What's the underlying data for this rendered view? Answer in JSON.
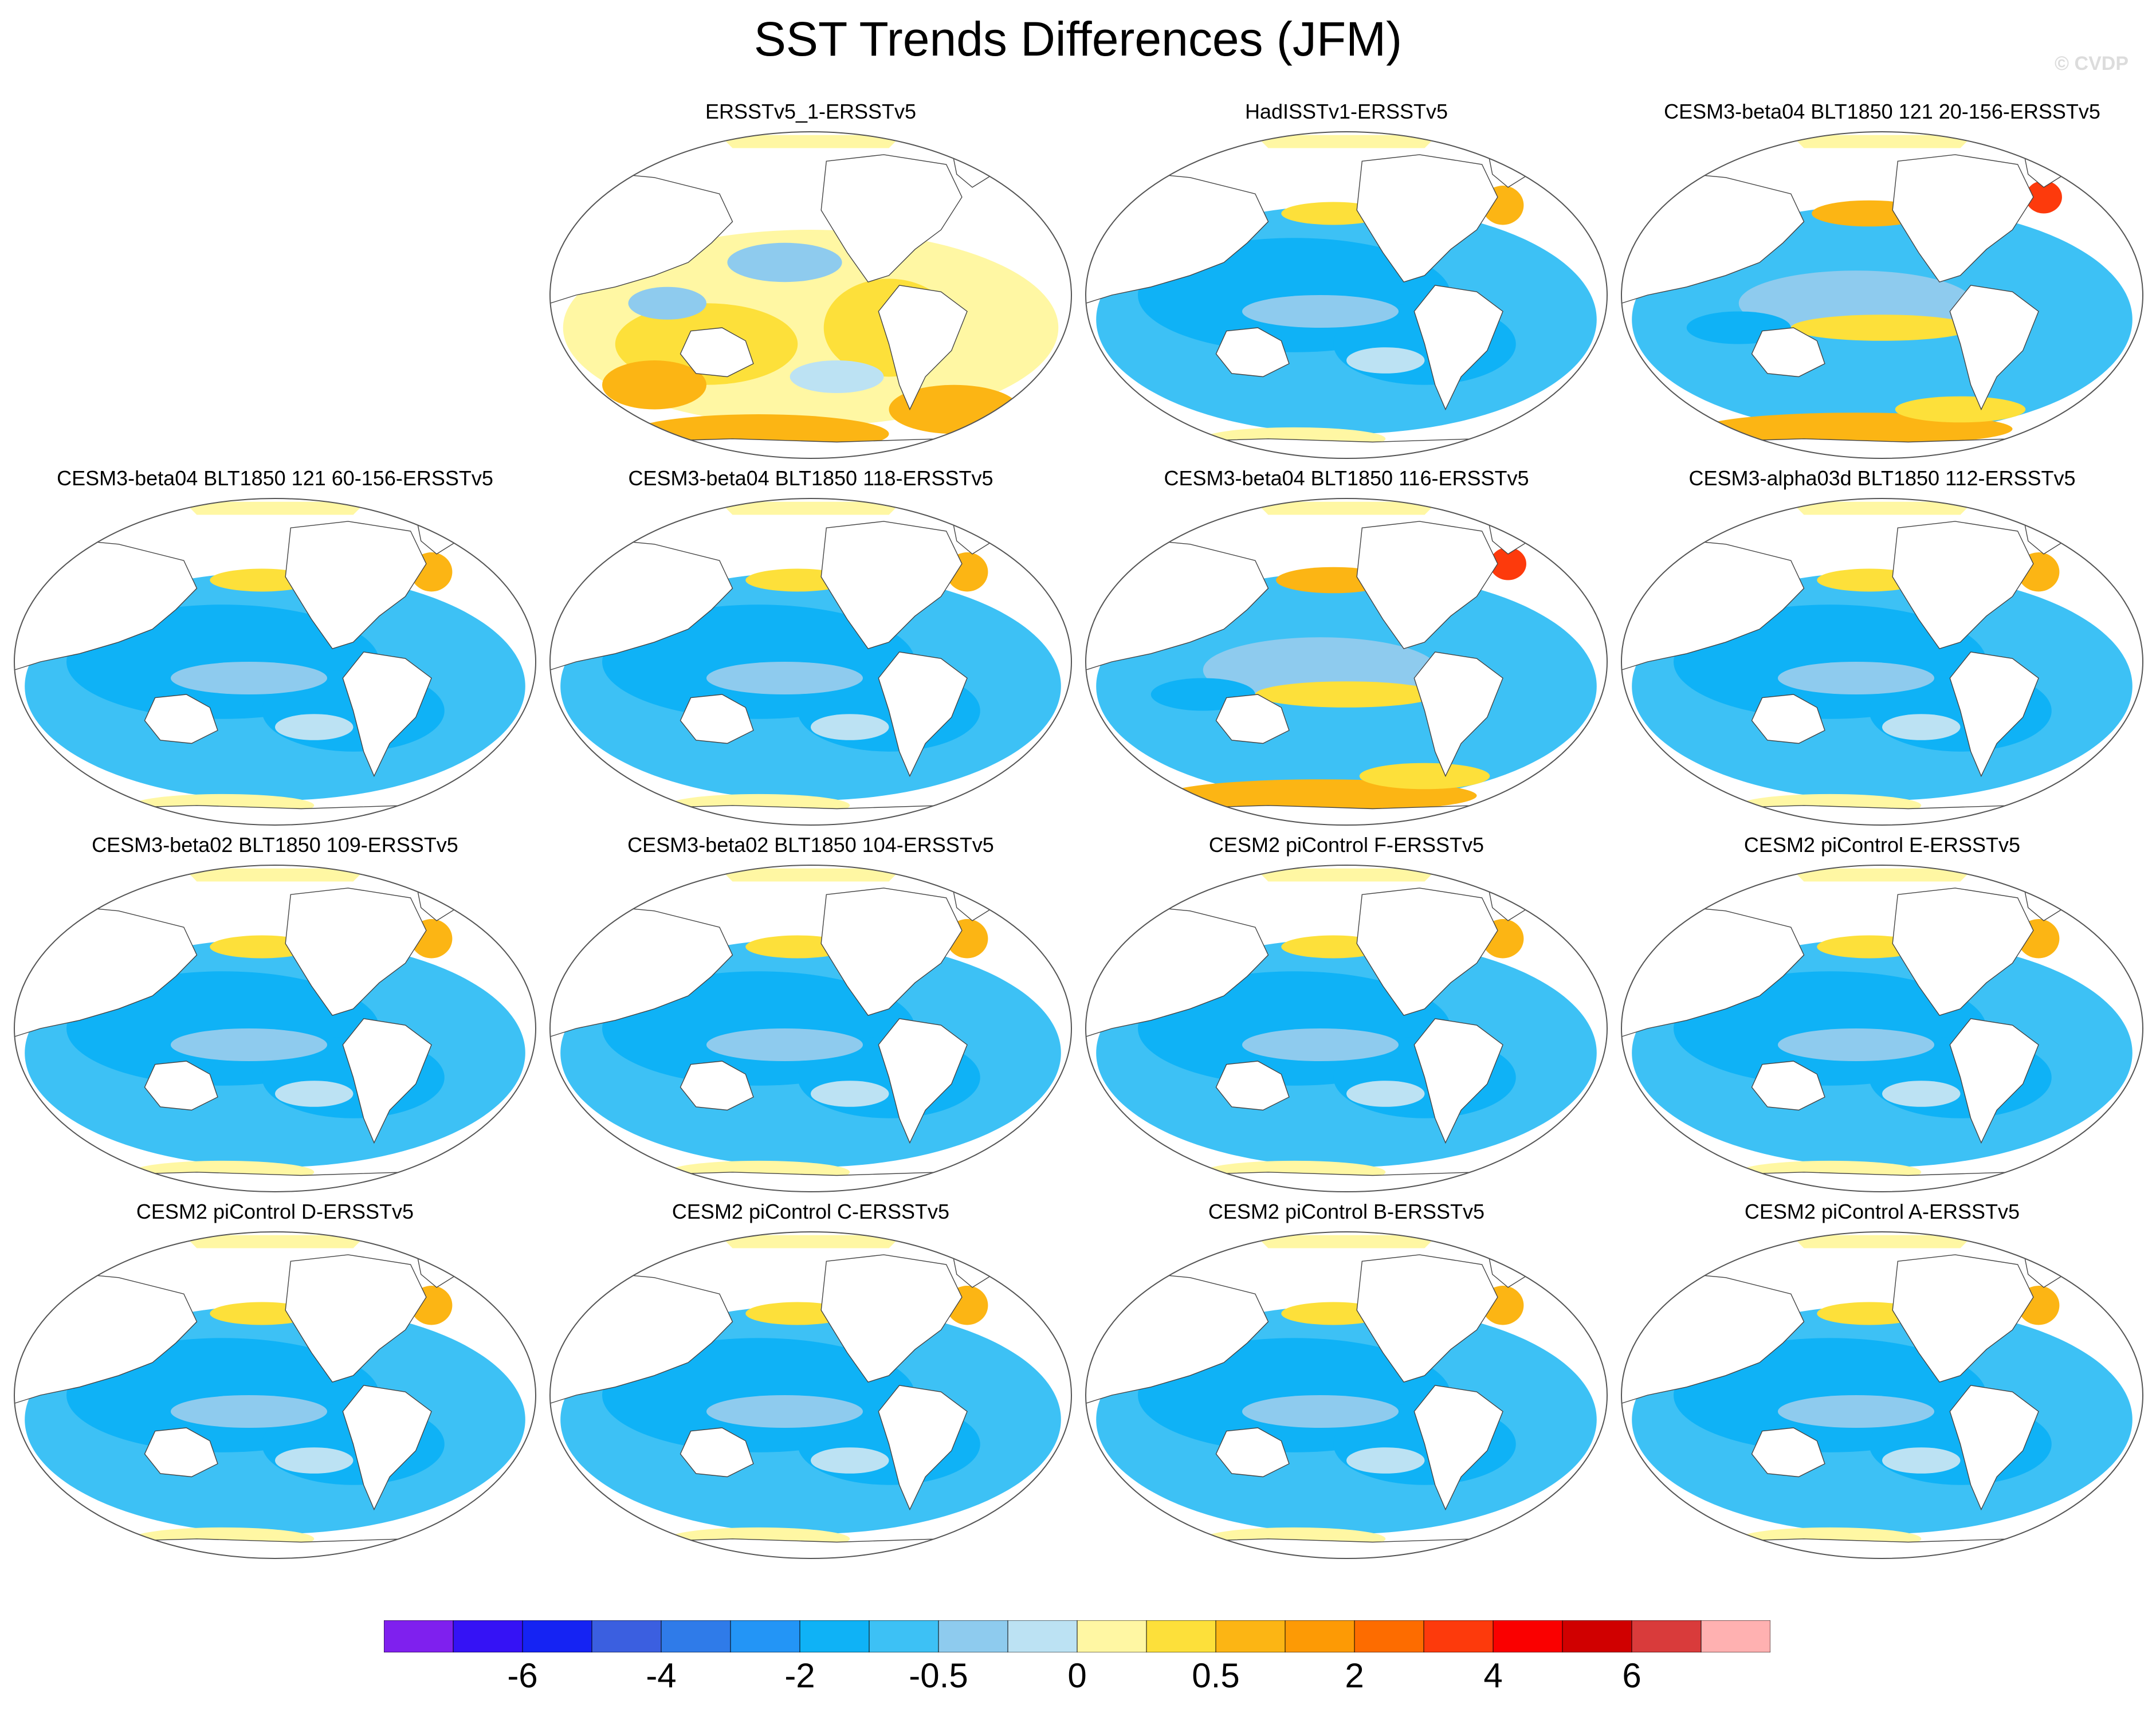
{
  "title": "SST Trends Differences (JFM)",
  "watermark": "© CVDP",
  "panels": [
    {
      "title": "ERSSTv5_1-ERSSTv5",
      "pattern": "warm"
    },
    {
      "title": "HadISSTv1-ERSSTv5",
      "pattern": "cool"
    },
    {
      "title": "CESM3-beta04 BLT1850 121 20-156-ERSSTv5",
      "pattern": "mixed"
    },
    {
      "title": "CESM3-beta04 BLT1850 121 60-156-ERSSTv5",
      "pattern": "cool"
    },
    {
      "title": "CESM3-beta04 BLT1850 118-ERSSTv5",
      "pattern": "cool"
    },
    {
      "title": "CESM3-beta04 BLT1850 116-ERSSTv5",
      "pattern": "mixed"
    },
    {
      "title": "CESM3-alpha03d BLT1850 112-ERSSTv5",
      "pattern": "cool"
    },
    {
      "title": "CESM3-beta02 BLT1850 109-ERSSTv5",
      "pattern": "cool"
    },
    {
      "title": "CESM3-beta02 BLT1850 104-ERSSTv5",
      "pattern": "cool"
    },
    {
      "title": "CESM2 piControl F-ERSSTv5",
      "pattern": "cool"
    },
    {
      "title": "CESM2 piControl E-ERSSTv5",
      "pattern": "cool"
    },
    {
      "title": "CESM2 piControl D-ERSSTv5",
      "pattern": "cool"
    },
    {
      "title": "CESM2 piControl C-ERSSTv5",
      "pattern": "cool"
    },
    {
      "title": "CESM2 piControl B-ERSSTv5",
      "pattern": "cool"
    },
    {
      "title": "CESM2 piControl A-ERSSTv5",
      "pattern": "cool"
    }
  ],
  "colorbar": {
    "colors": [
      "#7f20ee",
      "#3512f5",
      "#1523f3",
      "#3b5fe0",
      "#2f7be9",
      "#2395f6",
      "#0fb2f6",
      "#3dc1f5",
      "#8ecbee",
      "#bce2f3",
      "#fff7a3",
      "#fde03a",
      "#fcb514",
      "#fd9a05",
      "#fd6c00",
      "#fd3a0c",
      "#fa0000",
      "#d00000",
      "#d93b3b",
      "#ffb1b1"
    ],
    "labels": [
      {
        "text": "-6",
        "after_box": 2
      },
      {
        "text": "-4",
        "after_box": 4
      },
      {
        "text": "-2",
        "after_box": 6
      },
      {
        "text": "-0.5",
        "after_box": 8
      },
      {
        "text": "0",
        "after_box": 10
      },
      {
        "text": "0.5",
        "after_box": 12
      },
      {
        "text": "2",
        "after_box": 14
      },
      {
        "text": "4",
        "after_box": 16
      },
      {
        "text": "6",
        "after_box": 18
      }
    ]
  }
}
